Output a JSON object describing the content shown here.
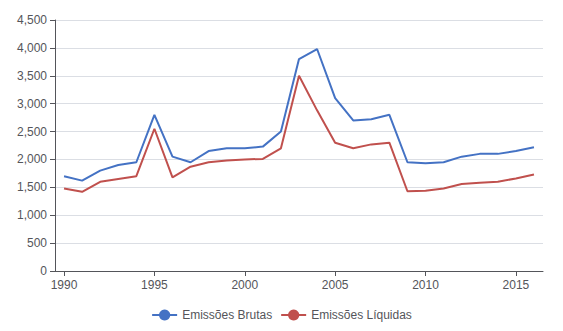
{
  "chart_data": {
    "type": "line",
    "x": [
      1990,
      1991,
      1992,
      1993,
      1994,
      1995,
      1996,
      1997,
      1998,
      1999,
      2000,
      2001,
      2002,
      2003,
      2004,
      2005,
      2006,
      2007,
      2008,
      2009,
      2010,
      2011,
      2012,
      2013,
      2014,
      2015,
      2016
    ],
    "series": [
      {
        "name": "Emissões Brutas",
        "color": "#4472C4",
        "values": [
          1700,
          1620,
          1800,
          1900,
          1950,
          2800,
          2050,
          1950,
          2150,
          2200,
          2200,
          2230,
          2500,
          3800,
          3980,
          3100,
          2700,
          2720,
          2800,
          1950,
          1930,
          1950,
          2050,
          2100,
          2100,
          2150,
          2220
        ]
      },
      {
        "name": "Emissões Líquidas",
        "color": "#C0504D",
        "values": [
          1480,
          1420,
          1600,
          1650,
          1700,
          2550,
          1680,
          1870,
          1950,
          1980,
          2000,
          2010,
          2200,
          3500,
          2880,
          2300,
          2200,
          2270,
          2300,
          1430,
          1440,
          1480,
          1560,
          1580,
          1600,
          1660,
          1730
        ]
      }
    ],
    "xlim": [
      1989.5,
      2016.5
    ],
    "xticks": [
      1990,
      1995,
      2000,
      2005,
      2010,
      2015
    ],
    "ylim": [
      0,
      4500
    ],
    "yticks": [
      0,
      500,
      {
        "value": 1000,
        "label": "1,000"
      },
      {
        "value": 1500,
        "label": "1,500"
      },
      {
        "value": 2000,
        "label": "2,000"
      },
      {
        "value": 2500,
        "label": "2,500"
      },
      {
        "value": 3000,
        "label": "3,000"
      },
      {
        "value": 3500,
        "label": "3,500"
      },
      {
        "value": 4000,
        "label": "4,000"
      },
      {
        "value": 4500,
        "label": "4,500"
      }
    ],
    "grid": true,
    "legend": "bottom"
  }
}
